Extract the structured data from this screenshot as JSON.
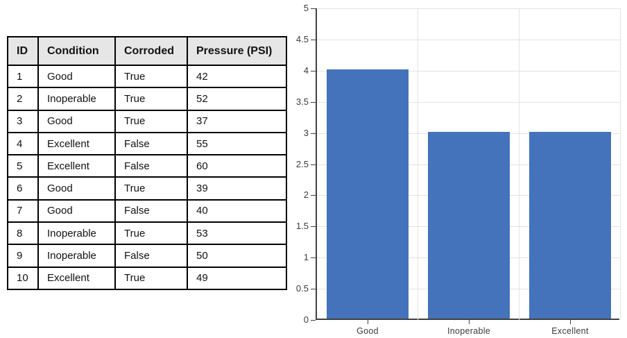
{
  "page": {
    "background": "#ffffff"
  },
  "table": {
    "columns": [
      "ID",
      "Condition",
      "Corroded",
      "Pressure (PSI)"
    ],
    "rows": [
      [
        "1",
        "Good",
        "True",
        "42"
      ],
      [
        "2",
        "Inoperable",
        "True",
        "52"
      ],
      [
        "3",
        "Good",
        "True",
        "37"
      ],
      [
        "4",
        "Excellent",
        "False",
        "55"
      ],
      [
        "5",
        "Excellent",
        "False",
        "60"
      ],
      [
        "6",
        "Good",
        "True",
        "39"
      ],
      [
        "7",
        "Good",
        "False",
        "40"
      ],
      [
        "8",
        "Inoperable",
        "True",
        "53"
      ],
      [
        "9",
        "Inoperable",
        "False",
        "50"
      ],
      [
        "10",
        "Excellent",
        "True",
        "49"
      ]
    ],
    "header_bg": "#E6E6E6",
    "border_color": "#000000"
  },
  "chart_data": {
    "type": "bar",
    "categories": [
      "Good",
      "Inoperable",
      "Excellent"
    ],
    "values": [
      4,
      3,
      3
    ],
    "title": "",
    "xlabel": "",
    "ylabel": "",
    "ylim": [
      0,
      5
    ],
    "ytick_step": 0.5,
    "ytick_labels": [
      "0",
      "0.5",
      "1",
      "1.5",
      "2",
      "2.5",
      "3",
      "3.5",
      "4",
      "4.5",
      "5"
    ],
    "grid": true,
    "legend": false,
    "bar_color": "#4473BB",
    "gridline_color": "#E2E2E2",
    "axis_color": "#404040",
    "label_color": "#3A3A3A"
  }
}
